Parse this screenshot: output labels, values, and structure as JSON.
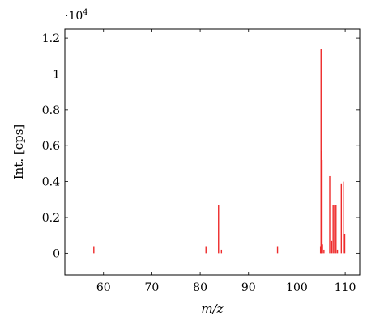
{
  "chart_data": {
    "type": "bar",
    "title": "",
    "xlabel": "m/z",
    "ylabel": "Int. [cps]",
    "y_multiplier_label": "·10",
    "y_multiplier_exponent": "4",
    "xlim": [
      52,
      113
    ],
    "ylim": [
      -0.12,
      1.25
    ],
    "y_scale_factor": 10000,
    "x_ticks": [
      60,
      70,
      80,
      90,
      100,
      110
    ],
    "x_tick_labels": [
      "60",
      "70",
      "80",
      "90",
      "100",
      "110"
    ],
    "y_ticks": [
      0,
      0.2,
      0.4,
      0.6,
      0.8,
      1,
      1.2
    ],
    "y_tick_labels": [
      "0",
      "0.2",
      "0.4",
      "0.6",
      "0.8",
      "1",
      "1.2"
    ],
    "grid": false,
    "legend": "none",
    "color": "#ee2b2b",
    "series": [
      {
        "x": [
          58,
          81.2,
          83.8,
          84.4,
          96,
          104.9,
          105.0,
          105.1,
          105.2,
          105.3,
          105.6,
          106.8,
          107.2,
          107.5,
          107.8,
          108.1,
          108.4,
          109.2,
          109.6,
          109.9
        ],
        "values": [
          0.04,
          0.04,
          0.27,
          0.02,
          0.04,
          0.04,
          1.14,
          0.57,
          0.52,
          0.05,
          0.02,
          0.43,
          0.07,
          0.27,
          0.27,
          0.27,
          0.02,
          0.39,
          0.4,
          0.11
        ]
      }
    ]
  }
}
